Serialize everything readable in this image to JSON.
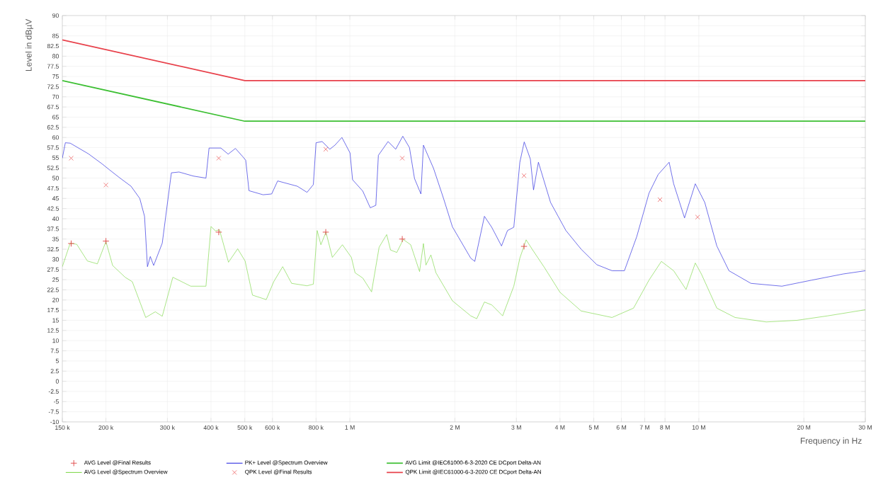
{
  "chart_data": {
    "type": "line",
    "xlabel": "Frequency in Hz",
    "ylabel": "Level in dBµV",
    "log": "x",
    "grid": true,
    "legend": "bottom",
    "xlim": [
      150000,
      30000000
    ],
    "ylim": [
      -10,
      90
    ],
    "xticks": [
      {
        "value": 150000,
        "label": "150 k"
      },
      {
        "value": 200000,
        "label": "200 k"
      },
      {
        "value": 300000,
        "label": "300 k"
      },
      {
        "value": 400000,
        "label": "400 k"
      },
      {
        "value": 500000,
        "label": "500 k"
      },
      {
        "value": 600000,
        "label": "600 k"
      },
      {
        "value": 800000,
        "label": "800 k"
      },
      {
        "value": 1000000,
        "label": "1 M"
      },
      {
        "value": 2000000,
        "label": "2 M"
      },
      {
        "value": 3000000,
        "label": "3 M"
      },
      {
        "value": 4000000,
        "label": "4 M"
      },
      {
        "value": 5000000,
        "label": "5 M"
      },
      {
        "value": 6000000,
        "label": "6 M"
      },
      {
        "value": 7000000,
        "label": "7 M"
      },
      {
        "value": 8000000,
        "label": "8 M"
      },
      {
        "value": 10000000,
        "label": "10 M"
      },
      {
        "value": 20000000,
        "label": "20 M"
      },
      {
        "value": 30000000,
        "label": "30 M"
      }
    ],
    "yticks": [
      -10,
      -7.5,
      -5,
      -2.5,
      0,
      2.5,
      5,
      7.5,
      10,
      12.5,
      15,
      17.5,
      20,
      22.5,
      25,
      27.5,
      30,
      32.5,
      35,
      37.5,
      40,
      42.5,
      45,
      47.5,
      50,
      52.5,
      55,
      57.5,
      60,
      62.5,
      65,
      67.5,
      70,
      72.5,
      75,
      77.5,
      80,
      82.5,
      85,
      {
        "value": 87.5,
        "label": null
      },
      90
    ],
    "series": [
      {
        "name": "AVG Level @Final Results",
        "type": "scatter",
        "marker": "plus",
        "color": "#e04848",
        "x": [
          159000,
          200000,
          421000,
          853000,
          1413000,
          3156000
        ],
        "values": [
          33.9,
          34.5,
          36.7,
          36.7,
          35.0,
          33.2
        ]
      },
      {
        "name": "AVG Level @Spectrum Overview",
        "type": "line",
        "color": "#7fd84a",
        "x": [
          150000,
          158000,
          165000,
          177000,
          189000,
          200000,
          209000,
          227000,
          238000,
          260000,
          277000,
          290000,
          311000,
          350000,
          387000,
          400000,
          412000,
          423000,
          449000,
          477000,
          501000,
          526000,
          576000,
          605000,
          642000,
          681000,
          754000,
          786000,
          806000,
          826000,
          854000,
          891000,
          952000,
          1010000,
          1035000,
          1089000,
          1154000,
          1213000,
          1275000,
          1308000,
          1363000,
          1422000,
          1494000,
          1584000,
          1625000,
          1652000,
          1707000,
          1765000,
          1968000,
          2220000,
          2310000,
          2430000,
          2550000,
          2740000,
          2950000,
          3070000,
          3200000,
          3330000,
          3610000,
          4000000,
          4600000,
          5640000,
          6500000,
          7200000,
          7810000,
          8470000,
          9190000,
          9770000,
          10170000,
          11260000,
          12700000,
          15600000,
          19100000,
          23400000,
          30000000
        ],
        "values": [
          28.2,
          34.0,
          33.7,
          29.6,
          28.9,
          34.4,
          28.5,
          25.6,
          24.5,
          15.7,
          17.1,
          16.0,
          25.6,
          23.4,
          23.4,
          38.1,
          37.0,
          37.3,
          29.3,
          32.6,
          29.6,
          21.2,
          20.1,
          24.5,
          28.2,
          24.1,
          23.5,
          23.9,
          37.1,
          33.6,
          36.7,
          30.5,
          33.6,
          30.5,
          26.7,
          25.4,
          22.0,
          33.0,
          36.1,
          32.3,
          31.7,
          34.9,
          33.6,
          27.0,
          33.9,
          28.6,
          31.1,
          26.7,
          19.8,
          16.1,
          15.4,
          19.5,
          18.8,
          16.1,
          23.4,
          30.3,
          34.8,
          32.5,
          28.0,
          21.9,
          17.3,
          15.7,
          18.0,
          24.9,
          29.5,
          27.2,
          22.6,
          29.1,
          26.4,
          18.0,
          15.7,
          14.6,
          15.0,
          16.1,
          17.6
        ]
      },
      {
        "name": "PK+ Level @Spectrum Overview",
        "type": "line",
        "color": "#2828e0",
        "x": [
          150000,
          153000,
          158000,
          178000,
          195000,
          205000,
          218000,
          236000,
          250000,
          258000,
          263000,
          268000,
          274000,
          290000,
          308000,
          324000,
          356000,
          387000,
          395000,
          427000,
          448000,
          470000,
          493000,
          503000,
          514000,
          564000,
          597000,
          621000,
          707000,
          754000,
          786000,
          800000,
          833000,
          876000,
          906000,
          949000,
          1001000,
          1018000,
          1089000,
          1144000,
          1187000,
          1207000,
          1287000,
          1353000,
          1418000,
          1482000,
          1532000,
          1598000,
          1625000,
          1737000,
          1857000,
          1968000,
          2220000,
          2280000,
          2430000,
          2550000,
          2720000,
          2830000,
          2950000,
          3070000,
          3160000,
          3290000,
          3360000,
          3470000,
          3760000,
          4160000,
          4600000,
          5100000,
          5640000,
          6120000,
          6640000,
          7200000,
          7650000,
          8220000,
          8470000,
          9100000,
          9770000,
          10400000,
          11260000,
          12200000,
          14100000,
          17300000,
          21100000,
          25900000,
          30000000
        ],
        "values": [
          54.9,
          58.7,
          58.6,
          56.0,
          53.5,
          52.0,
          50.2,
          48.0,
          45.0,
          40.6,
          28.2,
          30.7,
          28.5,
          34.0,
          51.3,
          51.5,
          50.5,
          50.0,
          57.4,
          57.4,
          55.9,
          57.3,
          55.3,
          54.4,
          46.9,
          45.9,
          46.1,
          49.3,
          48.0,
          46.5,
          48.4,
          58.7,
          59.0,
          57.1,
          58.1,
          60.0,
          56.2,
          49.6,
          46.8,
          42.7,
          43.3,
          55.6,
          59.0,
          57.1,
          60.3,
          57.5,
          49.9,
          46.1,
          58.1,
          52.4,
          44.9,
          38.0,
          30.3,
          29.5,
          40.6,
          37.9,
          33.3,
          37.1,
          37.9,
          53.9,
          58.9,
          54.7,
          47.1,
          53.9,
          44.0,
          37.1,
          32.5,
          28.7,
          27.2,
          27.2,
          35.6,
          46.3,
          50.9,
          53.9,
          48.6,
          40.2,
          48.6,
          44.0,
          33.3,
          27.2,
          24.1,
          23.4,
          24.9,
          26.4,
          27.2
        ]
      },
      {
        "name": "QPK Level @Final Results",
        "type": "scatter",
        "marker": "cross",
        "color": "#f07878",
        "x": [
          159000,
          200000,
          421000,
          853000,
          1413000,
          3156000,
          7740000,
          9920000
        ],
        "values": [
          54.9,
          48.3,
          54.9,
          57.1,
          54.9,
          50.6,
          44.7,
          40.4
        ]
      },
      {
        "name": "AVG Limit @IEC61000-6-3-2020 CE DCport Delta-AN",
        "type": "line",
        "color": "#3cbf32",
        "x": [
          150000,
          500000,
          30000000
        ],
        "values": [
          74,
          64,
          64
        ]
      },
      {
        "name": "QPK Limit @IEC61000-6-3-2020 CE DCport Delta-AN",
        "type": "line",
        "color": "#e8404a",
        "x": [
          150000,
          500000,
          30000000
        ],
        "values": [
          84,
          74,
          74
        ]
      }
    ]
  }
}
